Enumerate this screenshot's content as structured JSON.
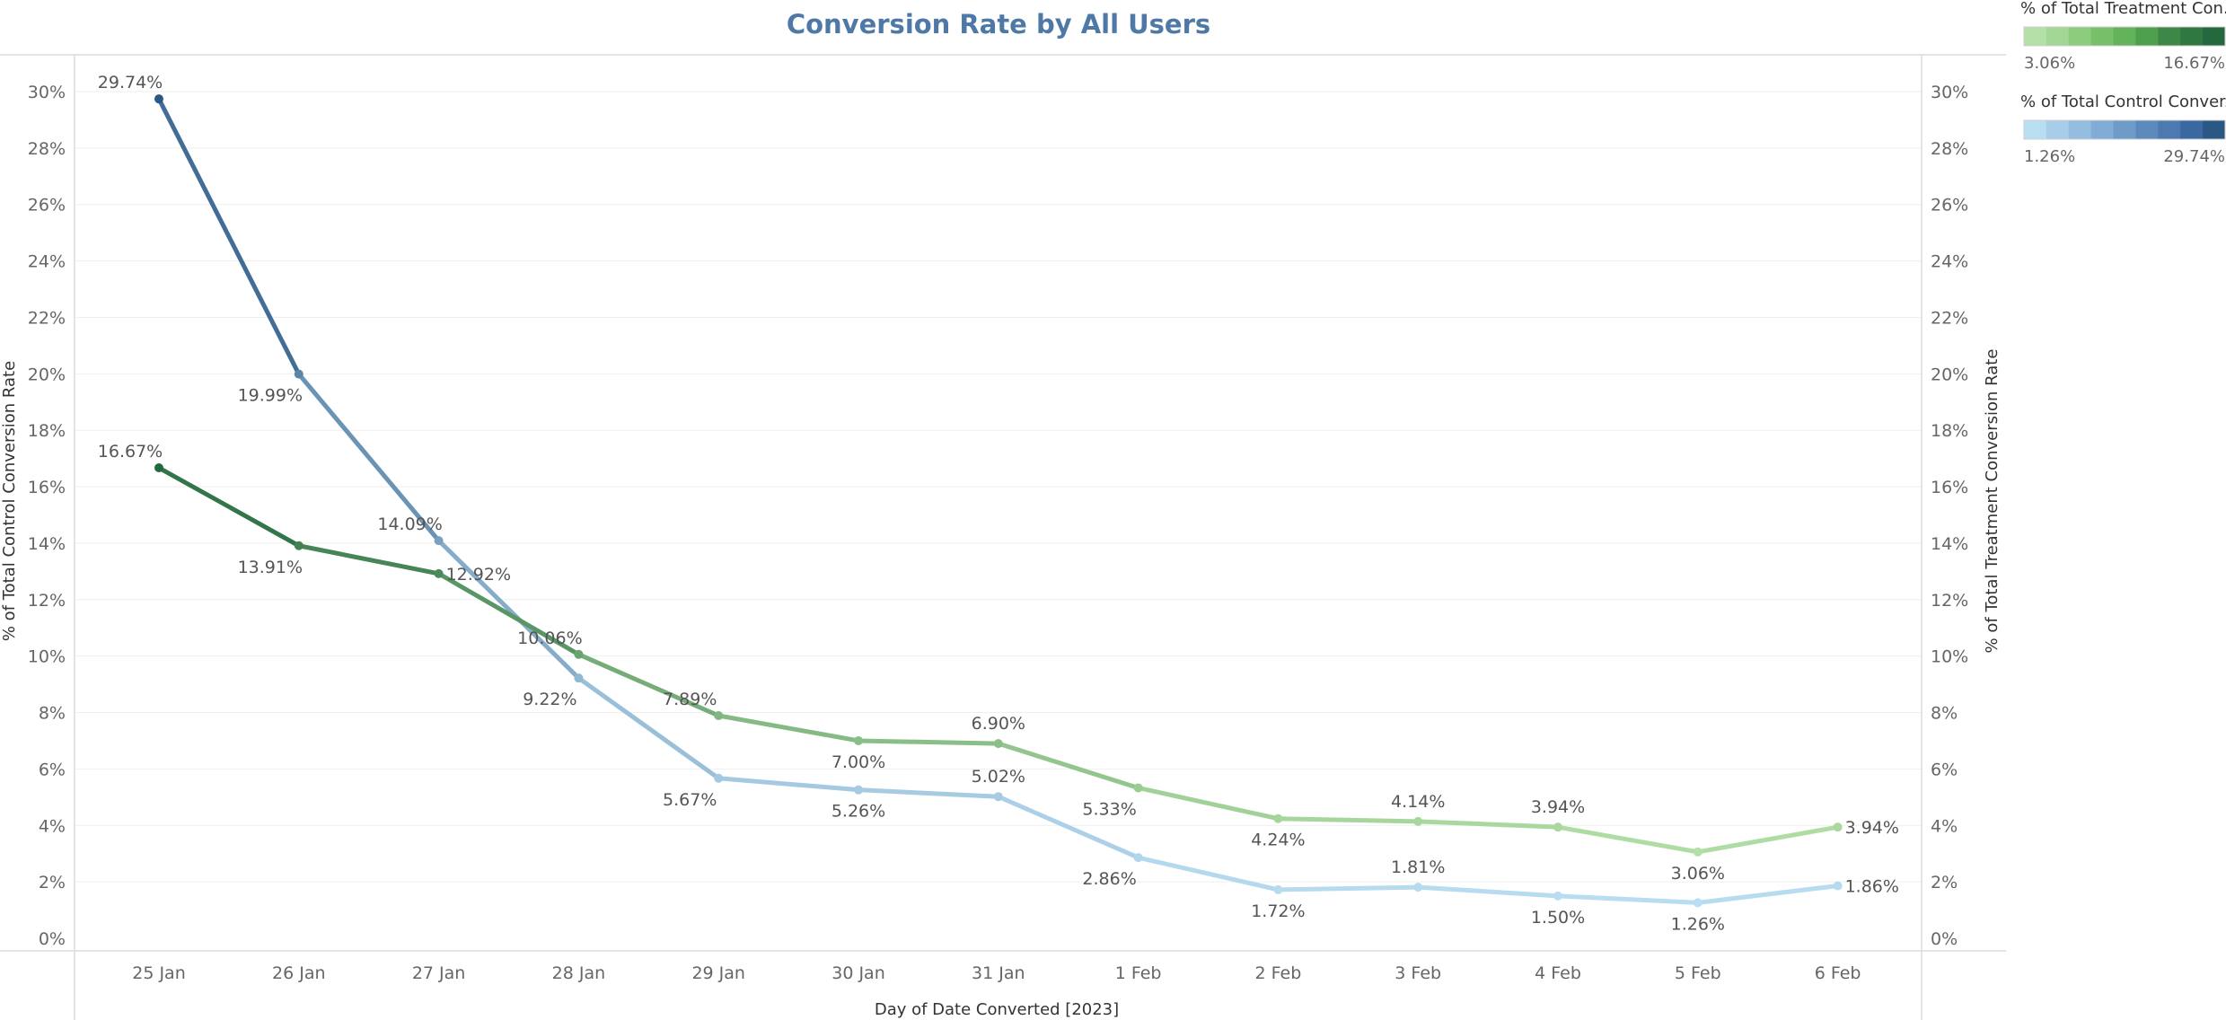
{
  "chart_data": {
    "type": "line",
    "title": "Conversion Rate by All Users",
    "xlabel": "Day of Date Converted [2023]",
    "ylabel_left": "% of Total Control Conversion Rate",
    "ylabel_right": "% of Total Treatment Conversion Rate",
    "categories": [
      "25 Jan",
      "26 Jan",
      "27 Jan",
      "28 Jan",
      "29 Jan",
      "30 Jan",
      "31 Jan",
      "1 Feb",
      "2 Feb",
      "3 Feb",
      "4 Feb",
      "5 Feb",
      "6 Feb"
    ],
    "ylim": [
      0,
      31
    ],
    "y_ticks": [
      "0%",
      "2%",
      "4%",
      "6%",
      "8%",
      "10%",
      "12%",
      "14%",
      "16%",
      "18%",
      "20%",
      "22%",
      "24%",
      "26%",
      "28%",
      "30%"
    ],
    "grid": "horizontal",
    "series": [
      {
        "name": "% of Total Control Conversion Rate",
        "axis": "left",
        "values": [
          29.74,
          19.99,
          14.09,
          9.22,
          5.67,
          5.26,
          5.02,
          2.86,
          1.72,
          1.81,
          1.5,
          1.26,
          1.86
        ],
        "labels": [
          "29.74%",
          "19.99%",
          "14.09%",
          "9.22%",
          "5.67%",
          "5.26%",
          "5.02%",
          "2.86%",
          "1.72%",
          "1.81%",
          "1.50%",
          "1.26%",
          "1.86%"
        ],
        "color_range": [
          "#b9ddf1",
          "#2a5783"
        ]
      },
      {
        "name": "% of Total Treatment Conversion Rate",
        "axis": "right",
        "values": [
          16.67,
          13.91,
          12.92,
          10.06,
          7.89,
          7.0,
          6.9,
          5.33,
          4.24,
          4.14,
          3.94,
          3.06,
          3.94
        ],
        "labels": [
          "16.67%",
          "13.91%",
          "12.92%",
          "10.06%",
          "7.89%",
          "7.00%",
          "6.90%",
          "5.33%",
          "4.24%",
          "4.14%",
          "3.94%",
          "3.06%",
          "3.94%"
        ],
        "color_range": [
          "#b3e0a6",
          "#24693d"
        ]
      }
    ],
    "legends": [
      {
        "title": "% of Total Treatment Con...",
        "min_label": "3.06%",
        "max_label": "16.67%",
        "steps": [
          "#b3e0a6",
          "#a3d795",
          "#8dcb7d",
          "#78bf6a",
          "#63b35a",
          "#4ea04d",
          "#3d8747",
          "#2f7842",
          "#24693d"
        ]
      },
      {
        "title": "% of Total Control Conver...",
        "min_label": "1.26%",
        "max_label": "29.74%",
        "steps": [
          "#b9ddf1",
          "#a7cde8",
          "#94bddf",
          "#81acd5",
          "#6f9bc9",
          "#5d8abd",
          "#4c79b0",
          "#3a68a0",
          "#2a5783"
        ]
      }
    ]
  }
}
